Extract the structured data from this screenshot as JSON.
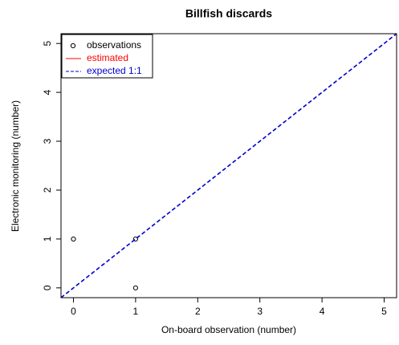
{
  "chart_data": {
    "type": "scatter",
    "title": "Billfish discards",
    "x_label": "On-board observation (number)",
    "y_label": "Electronic monitoring (number)",
    "xlim": [
      -0.2,
      5.2
    ],
    "ylim": [
      -0.2,
      5.2
    ],
    "xticks": [
      0,
      1,
      2,
      3,
      4,
      5
    ],
    "yticks": [
      0,
      1,
      2,
      3,
      4,
      5
    ],
    "legend_position": "top-left",
    "series": [
      {
        "name": "observations",
        "color": "#000000",
        "kind": "points",
        "x": [
          0,
          1,
          1
        ],
        "values": [
          1,
          1,
          0
        ]
      },
      {
        "name": "estimated",
        "color": "#ff0000",
        "kind": "line"
      },
      {
        "name": "expected 1:1",
        "color": "#0000cc",
        "kind": "dashed-line",
        "x": [
          -0.2,
          5.2
        ],
        "values": [
          -0.2,
          5.2
        ]
      }
    ]
  }
}
